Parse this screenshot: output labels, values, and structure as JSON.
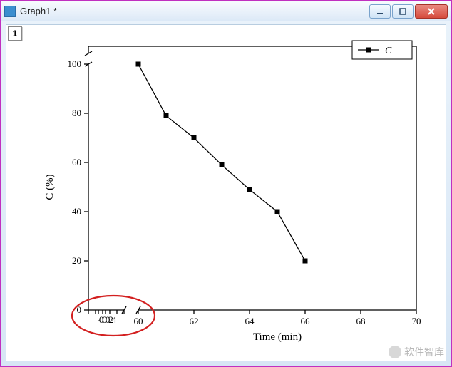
{
  "window": {
    "title": "Graph1 *",
    "minimize_label": "Minimize",
    "maximize_label": "Maximize",
    "close_label": "Close"
  },
  "sheet": {
    "tab": "1"
  },
  "chart": {
    "type": "line",
    "xlabel": "Time (min)",
    "ylabel": "C (%)",
    "label_fontsize": 15,
    "tick_fontsize": 13,
    "font_family": "Times New Roman, serif",
    "text_color": "#000000",
    "background": "#ffffff",
    "axis_color": "#000000",
    "axis_width": 1.3,
    "axis_break": {
      "x_at": 59.0,
      "symbol": "//"
    },
    "x_axis": {
      "segments": [
        {
          "xlim": [
            -1,
            4
          ],
          "plot_x": [
            115,
            165
          ],
          "ticks": [
            0,
            2,
            4
          ],
          "fine_ticks": [
            -1,
            0,
            0.4,
            1,
            1.4,
            2,
            3,
            4
          ],
          "label_overlap": "-00024"
        },
        {
          "xlim": [
            60,
            70
          ],
          "plot_x": [
            185,
            575
          ],
          "ticks": [
            60,
            62,
            64,
            66,
            68,
            70
          ]
        }
      ]
    },
    "y_axis": {
      "ylim": [
        0,
        105
      ],
      "segments": [
        {
          "ylim": [
            0,
            100
          ],
          "plot_y": [
            400,
            55
          ],
          "ticks": [
            0,
            20,
            40,
            60,
            80,
            100
          ]
        },
        {
          "ylim": [
            100,
            105
          ],
          "plot_y": [
            40,
            30
          ]
        }
      ],
      "axis_break": {
        "y_at": 101,
        "symbol": "//"
      }
    },
    "series": [
      {
        "name": "C",
        "color": "#000000",
        "line_width": 1.3,
        "marker": "square",
        "marker_size": 7,
        "marker_fill": "#000000",
        "points": [
          {
            "x": 60,
            "y": 100,
            "seg": 1
          },
          {
            "x": 61,
            "y": 79,
            "seg": 1
          },
          {
            "x": 62,
            "y": 70,
            "seg": 1
          },
          {
            "x": 63,
            "y": 59,
            "seg": 1
          },
          {
            "x": 64,
            "y": 49,
            "seg": 1
          },
          {
            "x": 65,
            "y": 40,
            "seg": 1
          },
          {
            "x": 66,
            "y": 20,
            "seg": 1
          }
        ]
      }
    ],
    "legend": {
      "position": "top-right",
      "border_color": "#000000",
      "background": "#ffffff",
      "items": [
        {
          "series": "C"
        }
      ]
    },
    "annotation": {
      "type": "ellipse",
      "stroke": "#d32020",
      "stroke_width": 2.2,
      "cx_plot": 150,
      "cy_plot": 408,
      "rx": 58,
      "ry": 28
    }
  },
  "watermark": {
    "text": "软件智库"
  }
}
